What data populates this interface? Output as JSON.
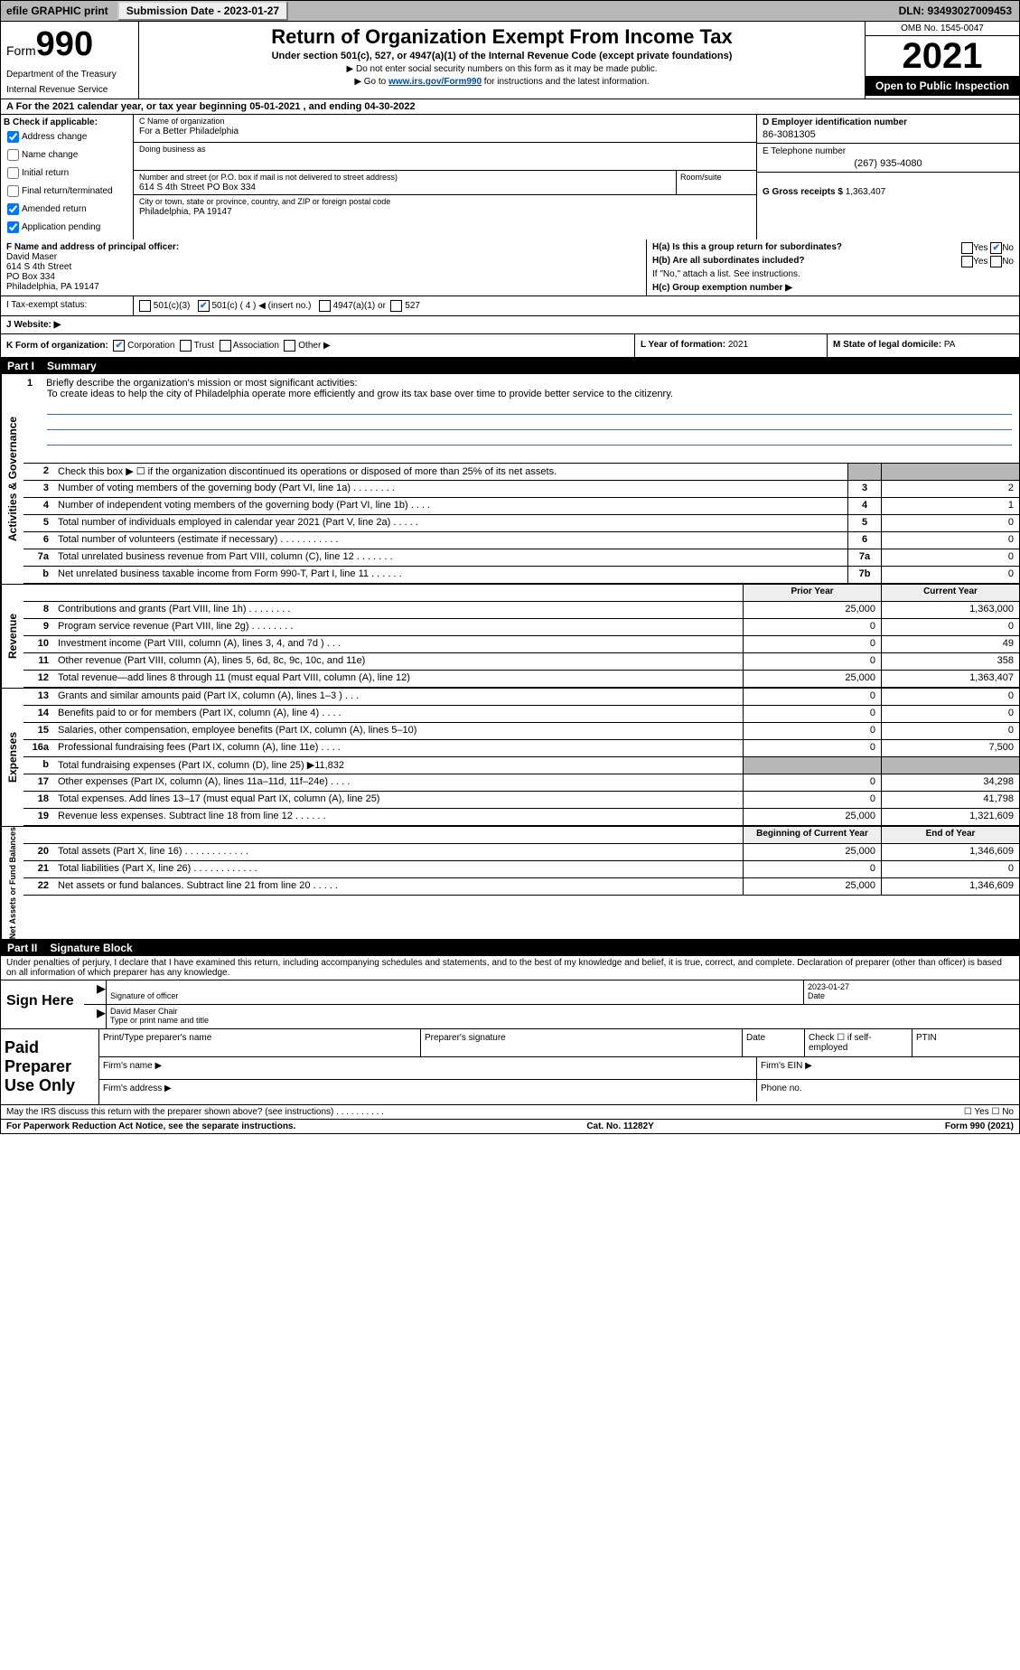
{
  "topbar": {
    "efile": "efile GRAPHIC print",
    "submission_label": "Submission Date - 2023-01-27",
    "dln_label": "DLN: 93493027009453"
  },
  "header": {
    "form_word": "Form",
    "form_no": "990",
    "dept": "Department of the Treasury",
    "irs": "Internal Revenue Service",
    "title": "Return of Organization Exempt From Income Tax",
    "sub": "Under section 501(c), 527, or 4947(a)(1) of the Internal Revenue Code (except private foundations)",
    "note1": "▶ Do not enter social security numbers on this form as it may be made public.",
    "note2_pre": "▶ Go to ",
    "note2_link": "www.irs.gov/Form990",
    "note2_post": " for instructions and the latest information.",
    "omb": "OMB No. 1545-0047",
    "year": "2021",
    "open": "Open to Public Inspection"
  },
  "rowA": "A For the 2021 calendar year, or tax year beginning 05-01-2021   , and ending 04-30-2022",
  "checkB": {
    "label": "B Check if applicable:",
    "items": [
      "Address change",
      "Name change",
      "Initial return",
      "Final return/terminated",
      "Amended return",
      "Application pending"
    ],
    "checked": [
      true,
      false,
      false,
      false,
      true,
      true
    ]
  },
  "orgC": {
    "name_label": "C Name of organization",
    "name": "For a Better Philadelphia",
    "dba_label": "Doing business as",
    "dba": "",
    "street_label": "Number and street (or P.O. box if mail is not delivered to street address)",
    "street": "614 S 4th Street PO Box 334",
    "room_label": "Room/suite",
    "city_label": "City or town, state or province, country, and ZIP or foreign postal code",
    "city": "Philadelphia, PA  19147"
  },
  "colD": {
    "ein_label": "D Employer identification number",
    "ein": "86-3081305",
    "phone_label": "E Telephone number",
    "phone": "(267) 935-4080",
    "gross_label": "G Gross receipts $",
    "gross": "1,363,407"
  },
  "rowF": {
    "label": "F  Name and address of principal officer:",
    "lines": [
      "David Maser",
      "614 S 4th Street",
      "PO Box 334",
      "Philadelphia, PA  19147"
    ]
  },
  "rowH": {
    "a": "H(a) Is this a group return for subordinates?",
    "b": "H(b) Are all subordinates included?",
    "bnote": "If \"No,\" attach a list. See instructions.",
    "c": "H(c) Group exemption number ▶"
  },
  "status": {
    "i_label": "I  Tax-exempt status:",
    "opt1": "501(c)(3)",
    "opt2a": "501(c) ( 4 ) ◀ (insert no.)",
    "opt3": "4947(a)(1) or",
    "opt4": "527",
    "j_label": "J Website: ▶"
  },
  "klm": {
    "k": "K Form of organization:",
    "k_opts": [
      "Corporation",
      "Trust",
      "Association",
      "Other ▶"
    ],
    "l_label": "L Year of formation:",
    "l_val": "2021",
    "m_label": "M State of legal domicile:",
    "m_val": "PA"
  },
  "part1_label": "Part I",
  "part1_title": "Summary",
  "mission": {
    "num": "1",
    "label": "Briefly describe the organization's mission or most significant activities:",
    "text": "To create ideas to help the city of Philadelphia operate more efficiently and grow its tax base over time to provide better service to the citizenry."
  },
  "gov_lines": [
    {
      "n": "2",
      "d": "Check this box ▶ ☐  if the organization discontinued its operations or disposed of more than 25% of its net assets.",
      "box": "",
      "v": ""
    },
    {
      "n": "3",
      "d": "Number of voting members of the governing body (Part VI, line 1a)   .    .    .    .    .    .    .    .",
      "box": "3",
      "v": "2"
    },
    {
      "n": "4",
      "d": "Number of independent voting members of the governing body (Part VI, line 1b)   .    .    .    .",
      "box": "4",
      "v": "1"
    },
    {
      "n": "5",
      "d": "Total number of individuals employed in calendar year 2021 (Part V, line 2a)   .    .    .    .    .",
      "box": "5",
      "v": "0"
    },
    {
      "n": "6",
      "d": "Total number of volunteers (estimate if necessary)   .    .    .    .    .    .    .    .    .    .    .",
      "box": "6",
      "v": "0"
    },
    {
      "n": "7a",
      "d": "Total unrelated business revenue from Part VIII, column (C), line 12   .    .    .    .    .    .    .",
      "box": "7a",
      "v": "0"
    },
    {
      "n": "b",
      "d": "Net unrelated business taxable income from Form 990-T, Part I, line 11   .    .    .    .    .    .",
      "box": "7b",
      "v": "0"
    }
  ],
  "yearheaders": {
    "prior": "Prior Year",
    "current": "Current Year"
  },
  "rev_lines": [
    {
      "n": "8",
      "d": "Contributions and grants (Part VIII, line 1h)   .    .    .    .    .    .    .    .",
      "p": "25,000",
      "c": "1,363,000"
    },
    {
      "n": "9",
      "d": "Program service revenue (Part VIII, line 2g)   .    .    .    .    .    .    .    .",
      "p": "0",
      "c": "0"
    },
    {
      "n": "10",
      "d": "Investment income (Part VIII, column (A), lines 3, 4, and 7d )   .    .    .",
      "p": "0",
      "c": "49"
    },
    {
      "n": "11",
      "d": "Other revenue (Part VIII, column (A), lines 5, 6d, 8c, 9c, 10c, and 11e)",
      "p": "0",
      "c": "358"
    },
    {
      "n": "12",
      "d": "Total revenue—add lines 8 through 11 (must equal Part VIII, column (A), line 12)",
      "p": "25,000",
      "c": "1,363,407"
    }
  ],
  "exp_lines": [
    {
      "n": "13",
      "d": "Grants and similar amounts paid (Part IX, column (A), lines 1–3 )   .    .    .",
      "p": "0",
      "c": "0"
    },
    {
      "n": "14",
      "d": "Benefits paid to or for members (Part IX, column (A), line 4)   .    .    .    .",
      "p": "0",
      "c": "0"
    },
    {
      "n": "15",
      "d": "Salaries, other compensation, employee benefits (Part IX, column (A), lines 5–10)",
      "p": "0",
      "c": "0"
    },
    {
      "n": "16a",
      "d": "Professional fundraising fees (Part IX, column (A), line 11e)   .    .    .    .",
      "p": "0",
      "c": "7,500"
    },
    {
      "n": "b",
      "d": "Total fundraising expenses (Part IX, column (D), line 25) ▶11,832",
      "p": "grey",
      "c": "grey"
    },
    {
      "n": "17",
      "d": "Other expenses (Part IX, column (A), lines 11a–11d, 11f–24e)   .    .    .    .",
      "p": "0",
      "c": "34,298"
    },
    {
      "n": "18",
      "d": "Total expenses. Add lines 13–17 (must equal Part IX, column (A), line 25)",
      "p": "0",
      "c": "41,798"
    },
    {
      "n": "19",
      "d": "Revenue less expenses. Subtract line 18 from line 12   .    .    .    .    .    .",
      "p": "25,000",
      "c": "1,321,609"
    }
  ],
  "net_headers": {
    "prior": "Beginning of Current Year",
    "current": "End of Year"
  },
  "net_lines": [
    {
      "n": "20",
      "d": "Total assets (Part X, line 16)   .    .    .    .    .    .    .    .    .    .    .    .",
      "p": "25,000",
      "c": "1,346,609"
    },
    {
      "n": "21",
      "d": "Total liabilities (Part X, line 26)   .    .    .    .    .    .    .    .    .    .    .    .",
      "p": "0",
      "c": "0"
    },
    {
      "n": "22",
      "d": "Net assets or fund balances. Subtract line 21 from line 20   .    .    .    .    .",
      "p": "25,000",
      "c": "1,346,609"
    }
  ],
  "part2_label": "Part II",
  "part2_title": "Signature Block",
  "sig_decl": "Under penalties of perjury, I declare that I have examined this return, including accompanying schedules and statements, and to the best of my knowledge and belief, it is true, correct, and complete. Declaration of preparer (other than officer) is based on all information of which preparer has any knowledge.",
  "sign": {
    "here": "Sign Here",
    "sig_of_officer": "Signature of officer",
    "date": "2023-01-27",
    "date_label": "Date",
    "name": "David Maser Chair",
    "name_label": "Type or print name and title"
  },
  "paid": {
    "label": "Paid Preparer Use Only",
    "col1": "Print/Type preparer's name",
    "col2": "Preparer's signature",
    "col3": "Date",
    "col4": "Check ☐ if self-employed",
    "col5": "PTIN",
    "firm_name": "Firm's name   ▶",
    "firm_ein": "Firm's EIN ▶",
    "firm_addr": "Firm's address ▶",
    "phone": "Phone no."
  },
  "foot": {
    "discuss": "May the IRS discuss this return with the preparer shown above? (see instructions)   .    .    .    .    .    .    .    .    .    .",
    "yn": "☐ Yes ☐ No",
    "pra": "For Paperwork Reduction Act Notice, see the separate instructions.",
    "cat": "Cat. No. 11282Y",
    "formend": "Form 990 (2021)"
  },
  "vlabels": {
    "gov": "Activities & Governance",
    "rev": "Revenue",
    "exp": "Expenses",
    "net": "Net Assets or Fund Balances"
  }
}
